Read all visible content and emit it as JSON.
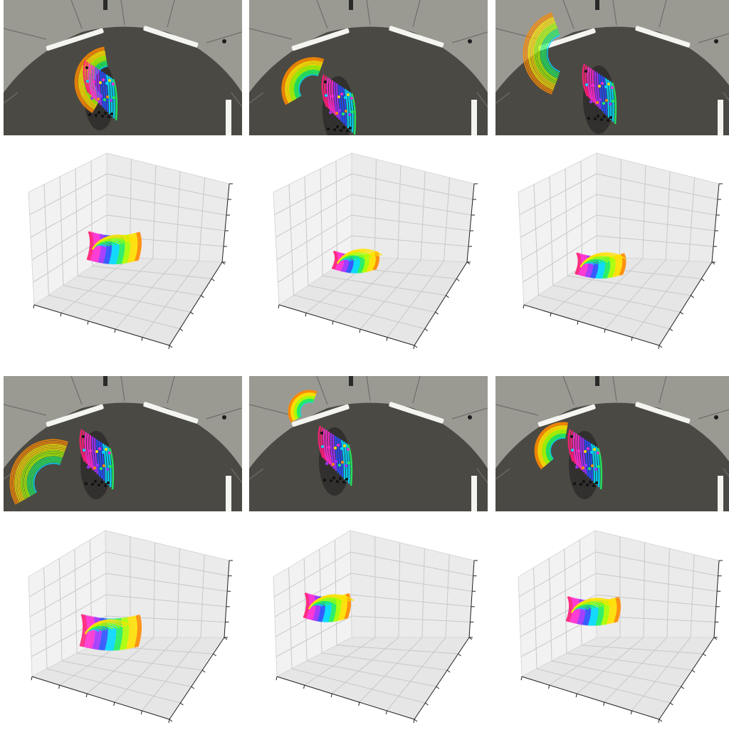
{
  "figure": {
    "panels": [
      {
        "id": "a",
        "plot_view": "standard",
        "photo_variant": "swirl-right"
      },
      {
        "id": "b",
        "plot_view": "flat",
        "photo_variant": "arcs-left"
      },
      {
        "id": "c",
        "plot_view": "oval",
        "photo_variant": "arcs-over"
      },
      {
        "id": "d",
        "plot_view": "low-fan",
        "photo_variant": "sweep-low"
      },
      {
        "id": "e",
        "plot_view": "arc-top",
        "photo_variant": "arcs-up"
      },
      {
        "id": "f",
        "plot_view": "diagonal",
        "photo_variant": "compact"
      }
    ],
    "colors": {
      "room_wall": "#9a9a93",
      "room_floor": "#4b4943",
      "panel_line": "#6f6f69",
      "light": "#f4f4f0",
      "axis_pane": "#f2f2f2",
      "grid": "#c8c8c8",
      "axis_line": "#222222",
      "track_hues": [
        "#ff1e78",
        "#ff2bd0",
        "#a030ff",
        "#2850ff",
        "#00d8ff",
        "#20f060",
        "#a8ff00",
        "#ffe000",
        "#ff8a00"
      ]
    },
    "icons": [
      "motion-trajectory-overlay",
      "3d-trajectory-plot"
    ]
  }
}
